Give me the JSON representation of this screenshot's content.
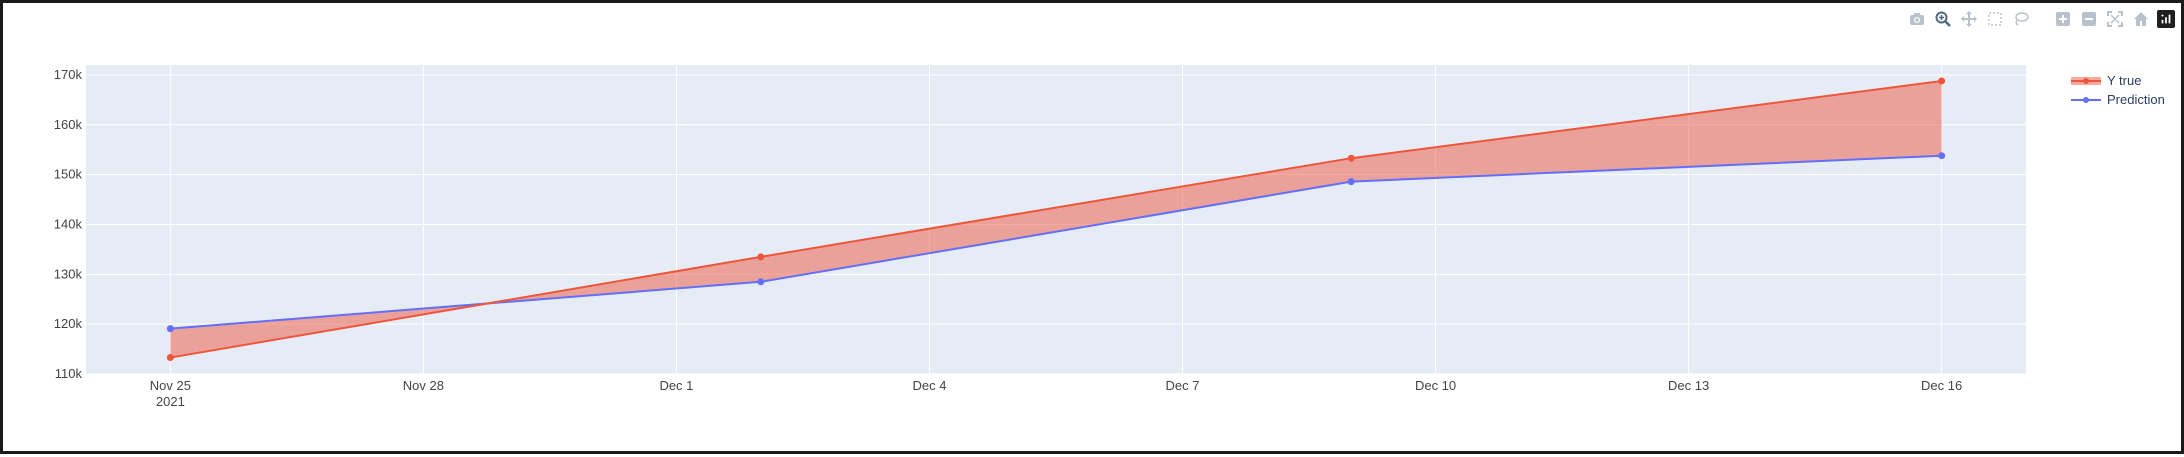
{
  "modebar": {
    "icons": [
      "camera-icon",
      "zoom-icon",
      "pan-icon",
      "box-select-icon",
      "lasso-icon",
      "zoom-in-icon",
      "zoom-out-icon",
      "autoscale-icon",
      "reset-axes-icon",
      "plotly-logo-icon"
    ]
  },
  "colors": {
    "plot_bg": "#e5ecf6",
    "y_true": "#ef553b",
    "prediction": "#636efa",
    "fill": "rgba(239,85,59,0.5)",
    "grid": "#ffffff",
    "tick_text": "#444444"
  },
  "chart_data": {
    "type": "line",
    "x_type": "date",
    "dates": [
      "2021-11-25",
      "2021-12-02",
      "2021-12-09",
      "2021-12-16"
    ],
    "series": [
      {
        "name": "Y true",
        "values": [
          113300,
          133500,
          153300,
          168800
        ]
      },
      {
        "name": "Prediction",
        "values": [
          119100,
          128500,
          148600,
          153800
        ]
      }
    ],
    "fill_between_series": true,
    "x_range": [
      "2021-11-24",
      "2021-12-17"
    ],
    "ylim": [
      110000,
      172000
    ],
    "x_ticks": [
      {
        "date": "2021-11-25",
        "label": "Nov 25",
        "sublabel": "2021"
      },
      {
        "date": "2021-11-28",
        "label": "Nov 28",
        "sublabel": ""
      },
      {
        "date": "2021-12-01",
        "label": "Dec 1",
        "sublabel": ""
      },
      {
        "date": "2021-12-04",
        "label": "Dec 4",
        "sublabel": ""
      },
      {
        "date": "2021-12-07",
        "label": "Dec 7",
        "sublabel": ""
      },
      {
        "date": "2021-12-10",
        "label": "Dec 10",
        "sublabel": ""
      },
      {
        "date": "2021-12-13",
        "label": "Dec 13",
        "sublabel": ""
      },
      {
        "date": "2021-12-16",
        "label": "Dec 16",
        "sublabel": ""
      }
    ],
    "y_ticks": [
      {
        "value": 110000,
        "label": "110k"
      },
      {
        "value": 120000,
        "label": "120k"
      },
      {
        "value": 130000,
        "label": "130k"
      },
      {
        "value": 140000,
        "label": "140k"
      },
      {
        "value": 150000,
        "label": "150k"
      },
      {
        "value": 160000,
        "label": "160k"
      },
      {
        "value": 170000,
        "label": "170k"
      }
    ],
    "legend": {
      "placement": "top-right outside",
      "entries": [
        "Y true",
        "Prediction"
      ]
    },
    "grid": true,
    "title": "",
    "xlabel": "",
    "ylabel": ""
  }
}
